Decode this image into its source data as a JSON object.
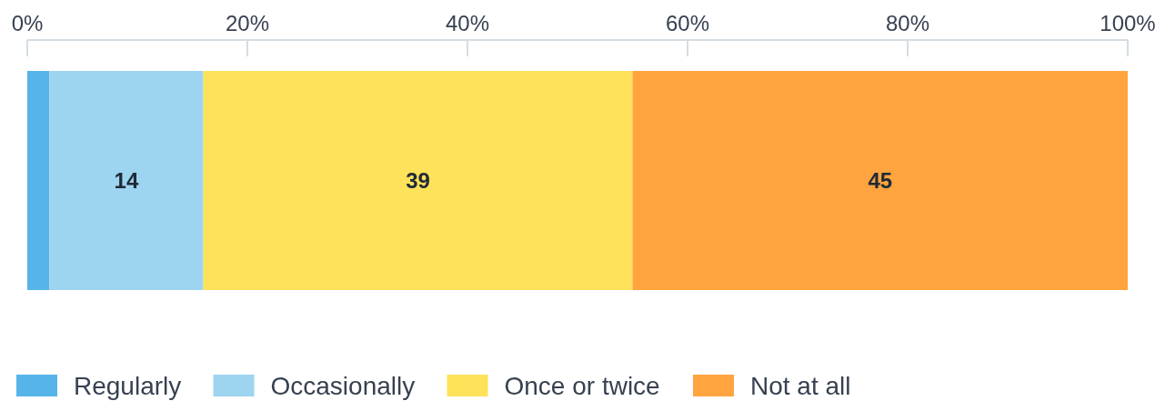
{
  "chart_data": {
    "type": "bar",
    "orientation": "horizontal",
    "stacked": true,
    "categories": [
      null
    ],
    "xlim": [
      0,
      100
    ],
    "xticks": [
      {
        "value": 0,
        "label": "0%"
      },
      {
        "value": 20,
        "label": "20%"
      },
      {
        "value": 40,
        "label": "40%"
      },
      {
        "value": 60,
        "label": "60%"
      },
      {
        "value": 80,
        "label": "80%"
      },
      {
        "value": 100,
        "label": "100%"
      }
    ],
    "series": [
      {
        "name": "Regularly",
        "color": "#56b4e9",
        "values": [
          2
        ],
        "value_labels": [
          null
        ]
      },
      {
        "name": "Occasionally",
        "color": "#9dd4f0",
        "values": [
          14
        ],
        "value_labels": [
          "14"
        ]
      },
      {
        "name": "Once or twice",
        "color": "#fde25a",
        "values": [
          39
        ],
        "value_labels": [
          "39"
        ]
      },
      {
        "name": "Not at all",
        "color": "#ffa43f",
        "values": [
          45
        ],
        "value_labels": [
          "45"
        ]
      }
    ],
    "legend": "bottom",
    "grid": false
  }
}
